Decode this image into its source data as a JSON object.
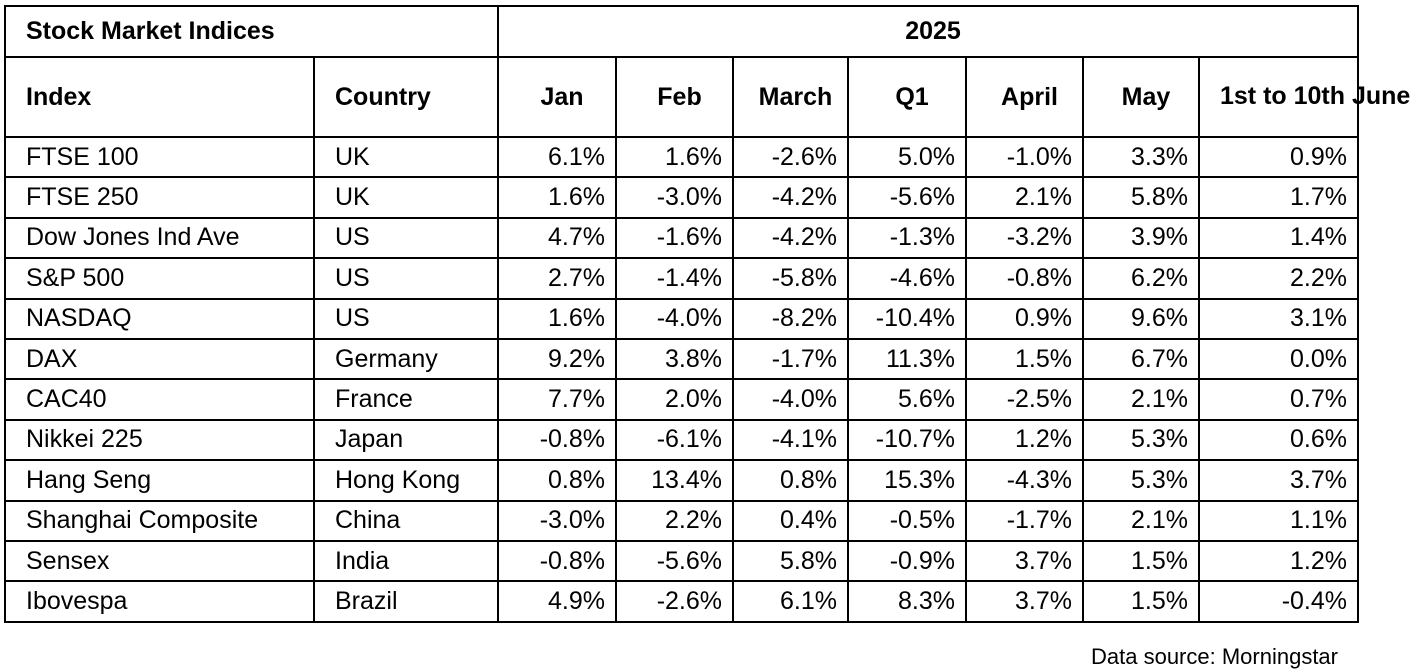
{
  "table": {
    "title": "Stock Market Indices",
    "year": "2025",
    "columns": [
      "Index",
      "Country",
      "Jan",
      "Feb",
      "March",
      "Q1",
      "April",
      "May",
      "1st to 10th June"
    ],
    "rows": [
      [
        "FTSE 100",
        "UK",
        "6.1%",
        "1.6%",
        "-2.6%",
        "5.0%",
        "-1.0%",
        "3.3%",
        "0.9%"
      ],
      [
        "FTSE 250",
        "UK",
        "1.6%",
        "-3.0%",
        "-4.2%",
        "-5.6%",
        "2.1%",
        "5.8%",
        "1.7%"
      ],
      [
        "Dow Jones Ind Ave",
        "US",
        "4.7%",
        "-1.6%",
        "-4.2%",
        "-1.3%",
        "-3.2%",
        "3.9%",
        "1.4%"
      ],
      [
        "S&P 500",
        "US",
        "2.7%",
        "-1.4%",
        "-5.8%",
        "-4.6%",
        "-0.8%",
        "6.2%",
        "2.2%"
      ],
      [
        "NASDAQ",
        "US",
        "1.6%",
        "-4.0%",
        "-8.2%",
        "-10.4%",
        "0.9%",
        "9.6%",
        "3.1%"
      ],
      [
        "DAX",
        "Germany",
        "9.2%",
        "3.8%",
        "-1.7%",
        "11.3%",
        "1.5%",
        "6.7%",
        "0.0%"
      ],
      [
        "CAC40",
        "France",
        "7.7%",
        "2.0%",
        "-4.0%",
        "5.6%",
        "-2.5%",
        "2.1%",
        "0.7%"
      ],
      [
        "Nikkei 225",
        "Japan",
        "-0.8%",
        "-6.1%",
        "-4.1%",
        "-10.7%",
        "1.2%",
        "5.3%",
        "0.6%"
      ],
      [
        "Hang Seng",
        "Hong Kong",
        "0.8%",
        "13.4%",
        "0.8%",
        "15.3%",
        "-4.3%",
        "5.3%",
        "3.7%"
      ],
      [
        "Shanghai Composite",
        "China",
        "-3.0%",
        "2.2%",
        "0.4%",
        "-0.5%",
        "-1.7%",
        "2.1%",
        "1.1%"
      ],
      [
        "Sensex",
        "India",
        "-0.8%",
        "-5.6%",
        "5.8%",
        "-0.9%",
        "3.7%",
        "1.5%",
        "1.2%"
      ],
      [
        "Ibovespa",
        "Brazil",
        "4.9%",
        "-2.6%",
        "6.1%",
        "8.3%",
        "3.7%",
        "1.5%",
        "-0.4%"
      ]
    ]
  },
  "footer": {
    "source": "Data source: Morningstar"
  }
}
